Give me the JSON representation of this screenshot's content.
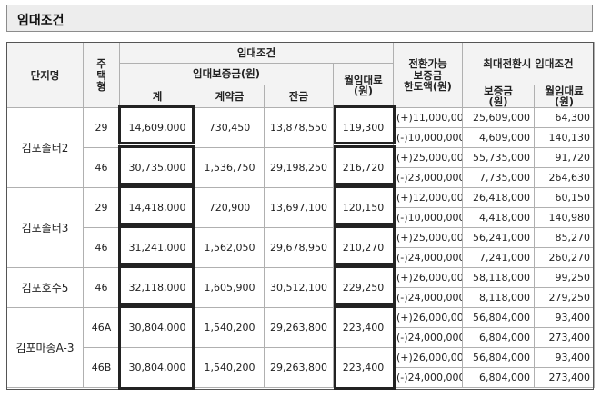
{
  "title": "임대조건",
  "headers": {
    "complex": "단지명",
    "type_lines": [
      "주",
      "택",
      "형"
    ],
    "lease": "임대조건",
    "deposit": "임대보증금(원)",
    "total": "계",
    "contract": "계약금",
    "balance": "잔금",
    "rent_lines": [
      "월임대료",
      "(원)"
    ],
    "convert_lines": [
      "전환가능",
      "보증금",
      "한도액(원)"
    ],
    "max_convert": "최대전환시  임대조건",
    "max_deposit_lines": [
      "보증금",
      "(원)"
    ],
    "max_rent_lines": [
      "월임대료",
      "(원)"
    ]
  },
  "groups": [
    {
      "name": "김포솔터2",
      "types": [
        {
          "type": "29",
          "total": "14,609,000",
          "contract": "730,450",
          "balance": "13,878,550",
          "rent": "119,300",
          "conv": [
            {
              "limit": "(+)11,000,000",
              "deposit": "25,609,000",
              "rent": "64,300"
            },
            {
              "limit": "(-)10,000,000",
              "deposit": "4,609,000",
              "rent": "140,130"
            }
          ]
        },
        {
          "type": "46",
          "total": "30,735,000",
          "contract": "1,536,750",
          "balance": "29,198,250",
          "rent": "216,720",
          "conv": [
            {
              "limit": "(+)25,000,000",
              "deposit": "55,735,000",
              "rent": "91,720"
            },
            {
              "limit": "(-)23,000,000",
              "deposit": "7,735,000",
              "rent": "264,630"
            }
          ]
        }
      ]
    },
    {
      "name": "김포솔터3",
      "types": [
        {
          "type": "29",
          "total": "14,418,000",
          "contract": "720,900",
          "balance": "13,697,100",
          "rent": "120,150",
          "conv": [
            {
              "limit": "(+)12,000,000",
              "deposit": "26,418,000",
              "rent": "60,150"
            },
            {
              "limit": "(-)10,000,000",
              "deposit": "4,418,000",
              "rent": "140,980"
            }
          ]
        },
        {
          "type": "46",
          "total": "31,241,000",
          "contract": "1,562,050",
          "balance": "29,678,950",
          "rent": "210,270",
          "conv": [
            {
              "limit": "(+)25,000,000",
              "deposit": "56,241,000",
              "rent": "85,270"
            },
            {
              "limit": "(-)24,000,000",
              "deposit": "7,241,000",
              "rent": "260,270"
            }
          ]
        }
      ]
    },
    {
      "name": "김포호수5",
      "types": [
        {
          "type": "46",
          "total": "32,118,000",
          "contract": "1,605,900",
          "balance": "30,512,100",
          "rent": "229,250",
          "conv": [
            {
              "limit": "(+)26,000,000",
              "deposit": "58,118,000",
              "rent": "99,250"
            },
            {
              "limit": "(-)24,000,000",
              "deposit": "8,118,000",
              "rent": "279,250"
            }
          ]
        }
      ]
    },
    {
      "name": "김포마송A-3",
      "types": [
        {
          "type": "46A",
          "total": "30,804,000",
          "contract": "1,540,200",
          "balance": "29,263,800",
          "rent": "223,400",
          "conv": [
            {
              "limit": "(+)26,000,000",
              "deposit": "56,804,000",
              "rent": "93,400"
            },
            {
              "limit": "(-)24,000,000",
              "deposit": "6,804,000",
              "rent": "273,400"
            }
          ]
        },
        {
          "type": "46B",
          "total": "30,804,000",
          "contract": "1,540,200",
          "balance": "29,263,800",
          "rent": "223,400",
          "conv": [
            {
              "limit": "(+)26,000,000",
              "deposit": "56,804,000",
              "rent": "93,400"
            },
            {
              "limit": "(-)24,000,000",
              "deposit": "6,804,000",
              "rent": "273,400"
            }
          ]
        }
      ]
    }
  ]
}
